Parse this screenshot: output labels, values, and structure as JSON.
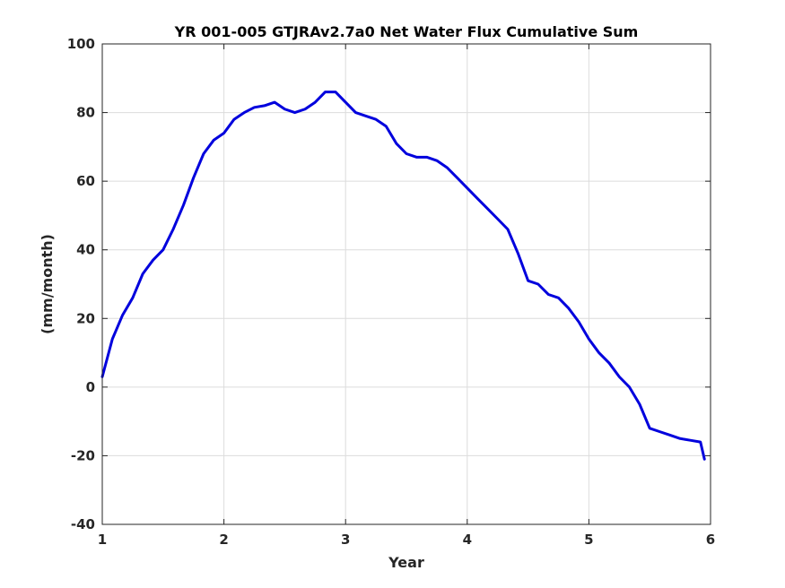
{
  "chart_data": {
    "type": "line",
    "title": "YR 001-005 GTJRAv2.7a0 Net Water Flux Cumulative Sum",
    "xlabel": "Year",
    "ylabel": "(mm/month)",
    "xlim": [
      1,
      6
    ],
    "ylim": [
      -40,
      100
    ],
    "xticks": [
      1,
      2,
      3,
      4,
      5,
      6
    ],
    "yticks": [
      -40,
      -20,
      0,
      20,
      40,
      60,
      80,
      100
    ],
    "grid": true,
    "series": [
      {
        "color": "#0000dd",
        "x": [
          1.0,
          1.083,
          1.167,
          1.25,
          1.333,
          1.417,
          1.5,
          1.583,
          1.667,
          1.75,
          1.833,
          1.917,
          2.0,
          2.083,
          2.167,
          2.25,
          2.333,
          2.417,
          2.5,
          2.583,
          2.667,
          2.75,
          2.833,
          2.917,
          3.0,
          3.083,
          3.167,
          3.25,
          3.333,
          3.417,
          3.5,
          3.583,
          3.667,
          3.75,
          3.833,
          3.917,
          4.0,
          4.083,
          4.167,
          4.25,
          4.333,
          4.417,
          4.5,
          4.583,
          4.667,
          4.75,
          4.833,
          4.917,
          5.0,
          5.083,
          5.167,
          5.25,
          5.333,
          5.417,
          5.5,
          5.583,
          5.667,
          5.75,
          5.833,
          5.917,
          5.95
        ],
        "y": [
          3,
          14,
          21,
          26,
          33,
          37,
          40,
          46,
          53,
          61,
          68,
          72,
          74,
          78,
          80,
          81.5,
          82,
          83,
          81,
          80,
          81,
          83,
          86,
          86,
          83,
          80,
          79,
          78,
          76,
          71,
          68,
          67,
          67,
          66,
          64,
          61,
          58,
          55,
          52,
          49,
          46,
          39,
          31,
          30,
          27,
          26,
          23,
          19,
          14,
          10,
          7,
          3,
          0,
          -5,
          -12,
          -13,
          -14,
          -15,
          -15.5,
          -16,
          -21
        ]
      }
    ]
  }
}
